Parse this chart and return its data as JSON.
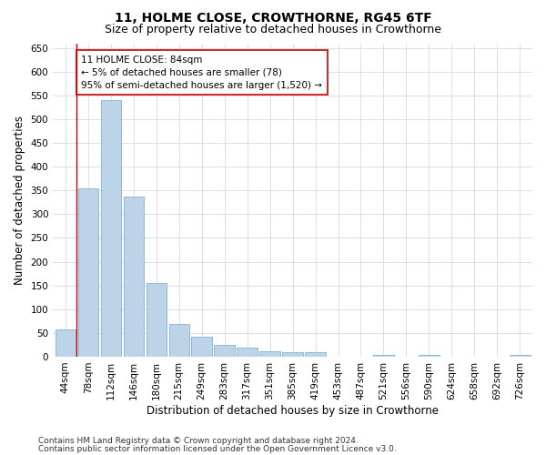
{
  "title1": "11, HOLME CLOSE, CROWTHORNE, RG45 6TF",
  "title2": "Size of property relative to detached houses in Crowthorne",
  "xlabel": "Distribution of detached houses by size in Crowthorne",
  "ylabel": "Number of detached properties",
  "categories": [
    "44sqm",
    "78sqm",
    "112sqm",
    "146sqm",
    "180sqm",
    "215sqm",
    "249sqm",
    "283sqm",
    "317sqm",
    "351sqm",
    "385sqm",
    "419sqm",
    "453sqm",
    "487sqm",
    "521sqm",
    "556sqm",
    "590sqm",
    "624sqm",
    "658sqm",
    "692sqm",
    "726sqm"
  ],
  "values": [
    58,
    355,
    540,
    337,
    155,
    68,
    42,
    24,
    19,
    12,
    9,
    9,
    0,
    0,
    4,
    0,
    4,
    0,
    0,
    0,
    4
  ],
  "bar_color": "#bdd4e8",
  "bar_edge_color": "#6aaad4",
  "marker_color": "#cc0000",
  "annotation_line1": "11 HOLME CLOSE: 84sqm",
  "annotation_line2": "← 5% of detached houses are smaller (78)",
  "annotation_line3": "95% of semi-detached houses are larger (1,520) →",
  "annotation_box_color": "#ffffff",
  "annotation_box_edge_color": "#cc0000",
  "ylim": [
    0,
    660
  ],
  "yticks": [
    0,
    50,
    100,
    150,
    200,
    250,
    300,
    350,
    400,
    450,
    500,
    550,
    600,
    650
  ],
  "grid_color": "#d4dce8",
  "footer_line1": "Contains HM Land Registry data © Crown copyright and database right 2024.",
  "footer_line2": "Contains public sector information licensed under the Open Government Licence v3.0.",
  "title1_fontsize": 10,
  "title2_fontsize": 9,
  "xlabel_fontsize": 8.5,
  "ylabel_fontsize": 8.5,
  "tick_fontsize": 7.5,
  "annotation_fontsize": 7.5,
  "footer_fontsize": 6.5
}
